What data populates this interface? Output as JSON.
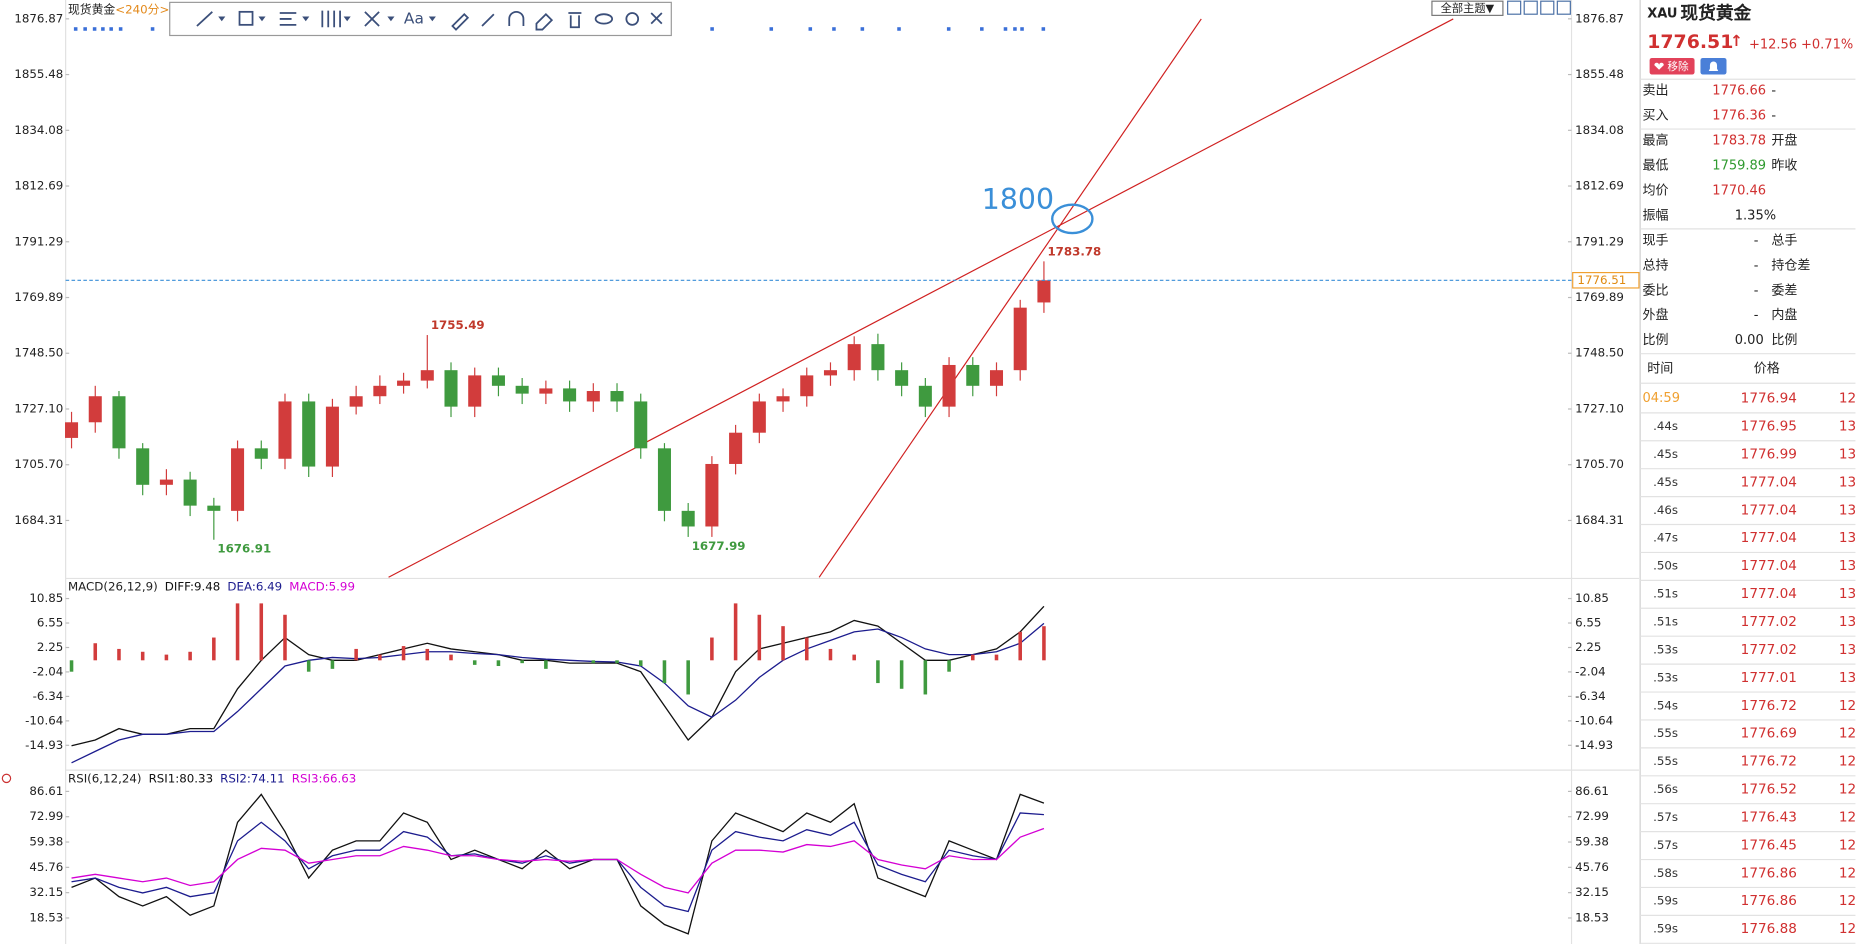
{
  "chart_data": [
    {
      "type": "candlestick",
      "title": "现货黄金",
      "period": "<240分>",
      "annotation": "1800",
      "up_color": "#d23c3c",
      "down_color": "#3f9a3f",
      "price_line_color": "#3a8fd8",
      "open": [
        1716,
        1722,
        1732,
        1712,
        1698,
        1700,
        1690,
        1688,
        1712,
        1708,
        1730,
        1705,
        1728,
        1732,
        1736,
        1738,
        1742,
        1728,
        1740,
        1736,
        1733,
        1735,
        1730,
        1734,
        1730,
        1712,
        1688,
        1682,
        1706,
        1718,
        1730,
        1732,
        1740,
        1742,
        1752,
        1742,
        1736,
        1728,
        1744,
        1736,
        1742,
        1768
      ],
      "high": [
        1726,
        1736,
        1734,
        1714,
        1704,
        1703,
        1693,
        1715,
        1715,
        1733,
        1733,
        1731,
        1736,
        1740,
        1741,
        1755.49,
        1745,
        1743,
        1743,
        1739,
        1738,
        1738,
        1737,
        1737,
        1733,
        1714,
        1691,
        1709,
        1721,
        1733,
        1735,
        1743,
        1745,
        1755,
        1756,
        1745,
        1739,
        1747,
        1747,
        1745,
        1769,
        1783.78
      ],
      "low": [
        1712,
        1718,
        1708,
        1694,
        1694,
        1686,
        1676.91,
        1684,
        1704,
        1704,
        1701,
        1701,
        1725,
        1729,
        1733,
        1735,
        1724,
        1724,
        1732,
        1729,
        1729,
        1726,
        1726,
        1726,
        1708,
        1684,
        1677.99,
        1678,
        1702,
        1714,
        1726,
        1728,
        1736,
        1738,
        1738,
        1732,
        1724,
        1724,
        1732,
        1732,
        1738,
        1764
      ],
      "close": [
        1722,
        1732,
        1712,
        1698,
        1700,
        1690,
        1688,
        1712,
        1708,
        1730,
        1705,
        1728,
        1732,
        1736,
        1738,
        1742,
        1728,
        1740,
        1736,
        1733,
        1735,
        1730,
        1734,
        1730,
        1712,
        1688,
        1682,
        1706,
        1718,
        1730,
        1732,
        1740,
        1742,
        1752,
        1742,
        1736,
        1728,
        1744,
        1736,
        1742,
        1766,
        1776.51
      ],
      "ylim": [
        1662.5,
        1884.1
      ],
      "yticks": [
        1876.87,
        1855.48,
        1834.08,
        1812.69,
        1791.29,
        1769.89,
        {
          "value": 1748.5,
          "label": "1748.50"
        },
        {
          "value": 1727.1,
          "label": "1727.10"
        },
        {
          "value": 1705.7,
          "label": "1705.70"
        },
        1684.31
      ]
    },
    {
      "type": "macd",
      "title": "MACD(26,12,9)",
      "ylim": [
        -19.08,
        14.17
      ],
      "yticks": [
        10.85,
        6.55,
        2.25,
        -2.04,
        -6.34,
        -10.64,
        -14.93
      ],
      "up_color": "#d23c3c",
      "down_color": "#3f9a3f",
      "series": [
        {
          "name": "DIFF:9.48",
          "color": "#111111",
          "values": [
            -15,
            -14,
            -12,
            -13,
            -13,
            -12,
            -12,
            -5,
            0,
            4,
            1,
            0,
            0,
            1,
            2,
            3,
            2,
            1.5,
            1,
            0,
            0,
            -0.5,
            -0.5,
            -0.5,
            -2,
            -8,
            -14,
            -10,
            -2,
            2,
            3,
            4,
            5,
            7,
            6,
            3,
            0,
            0,
            1,
            2,
            5,
            9.48
          ]
        },
        {
          "name": "DEA:6.49",
          "color": "#1c1c8e",
          "values": [
            -18,
            -16,
            -14,
            -13,
            -13,
            -12.5,
            -12.5,
            -9,
            -5,
            -1,
            0,
            0.5,
            0.3,
            0.5,
            1,
            1.5,
            1.5,
            1.2,
            1,
            0.5,
            0.2,
            0,
            -0.2,
            -0.3,
            -1,
            -4,
            -8,
            -10,
            -7,
            -3,
            0,
            2,
            3.5,
            5,
            5.5,
            4,
            2,
            1,
            1,
            1.5,
            3,
            6.49
          ]
        },
        {
          "name": "MACD:5.99",
          "color": "#d400d4",
          "style": "bar",
          "values": [
            -2,
            3,
            2,
            1.5,
            1,
            1.5,
            4,
            10,
            10,
            8,
            -2,
            -1.5,
            2,
            1,
            2.5,
            2,
            1,
            -0.8,
            -1,
            -0.5,
            -1.5,
            0,
            -0.5,
            -0.5,
            -1,
            -4,
            -6,
            4,
            10,
            8,
            6,
            4,
            2,
            1,
            -4,
            -5,
            -6,
            -2,
            1,
            1,
            5,
            5.99
          ]
        }
      ]
    },
    {
      "type": "rsi",
      "title": "RSI(6,12,24)",
      "ylim": [
        4.53,
        97.43
      ],
      "yticks": [
        86.61,
        72.99,
        59.38,
        45.76,
        32.15,
        18.53
      ],
      "series": [
        {
          "name": "RSI1:80.33",
          "color": "#111111",
          "values": [
            35,
            40,
            30,
            25,
            30,
            20,
            25,
            70,
            85,
            65,
            40,
            55,
            60,
            60,
            75,
            70,
            50,
            55,
            50,
            45,
            55,
            45,
            50,
            50,
            25,
            15,
            10,
            60,
            75,
            70,
            65,
            75,
            70,
            80,
            40,
            35,
            30,
            60,
            55,
            50,
            85,
            80.33
          ]
        },
        {
          "name": "RSI2:74.11",
          "color": "#1c1c8e",
          "values": [
            38,
            40,
            35,
            32,
            35,
            30,
            32,
            60,
            70,
            60,
            45,
            52,
            55,
            55,
            65,
            62,
            52,
            53,
            50,
            48,
            52,
            48,
            50,
            50,
            35,
            25,
            22,
            55,
            65,
            62,
            60,
            66,
            63,
            70,
            47,
            42,
            38,
            55,
            52,
            50,
            75,
            74.11
          ]
        },
        {
          "name": "RSI3:66.63",
          "color": "#d400d4",
          "values": [
            40,
            42,
            40,
            38,
            40,
            36,
            38,
            50,
            56,
            55,
            48,
            50,
            52,
            52,
            57,
            55,
            52,
            52,
            50,
            49,
            50,
            49,
            50,
            50,
            42,
            35,
            32,
            48,
            55,
            55,
            54,
            58,
            57,
            60,
            50,
            47,
            45,
            52,
            50,
            50,
            62,
            66.63
          ]
        }
      ]
    }
  ],
  "toolbar": {
    "text_tool": "Aa",
    "theme_menu": "全部主题▼"
  },
  "quote": {
    "symbol": "XAU",
    "name": "现货黄金",
    "price": "1776.51",
    "arrow": "↑",
    "change": "+12.56",
    "change_pct": "+0.71%",
    "remove_button": "移除",
    "rows": [
      {
        "color": "#d03030",
        "cells": [
          "卖出",
          "1776.66",
          "-"
        ]
      },
      {
        "color": "#d03030",
        "cells": [
          "买入",
          "1776.36",
          "-"
        ]
      },
      {
        "color": "#d03030",
        "cells": [
          "最高",
          "1783.78",
          "开盘"
        ]
      },
      {
        "color": "#2f9a2f",
        "cells": [
          "最低",
          "1759.89",
          "昨收"
        ]
      },
      {
        "color": "#d03030",
        "cells": [
          "均价",
          "1770.46"
        ]
      },
      {
        "color": "#222222",
        "cells": [
          "振幅",
          "1.35%"
        ]
      },
      {
        "color": "#222222",
        "cells": [
          "现手",
          "-",
          "总手"
        ]
      },
      {
        "color": "#222222",
        "cells": [
          "总持",
          "-",
          "持仓差"
        ]
      },
      {
        "color": "#222222",
        "cells": [
          "委比",
          "-",
          "委差"
        ]
      },
      {
        "color": "#222222",
        "cells": [
          "外盘",
          "-",
          "内盘"
        ]
      },
      {
        "color": "#222222",
        "cells": [
          "比例",
          "0.00",
          "比例"
        ]
      }
    ],
    "trade_header": [
      "时间",
      "价格"
    ],
    "trades": {
      "times": [
        "04:59",
        ".44s",
        ".45s",
        ".45s",
        ".46s",
        ".47s",
        ".50s",
        ".51s",
        ".51s",
        ".53s",
        ".53s",
        ".54s",
        ".55s",
        ".55s",
        ".56s",
        ".57s",
        ".57s",
        ".58s",
        ".59s",
        ".59s"
      ],
      "prices": [
        "1776.94",
        "1776.95",
        "1776.99",
        "1777.04",
        "1777.04",
        "1777.04",
        "1777.04",
        "1777.04",
        "1777.02",
        "1777.02",
        "1777.01",
        "1776.72",
        "1776.69",
        "1776.72",
        "1776.52",
        "1776.43",
        "1776.45",
        "1776.86",
        "1776.86",
        "1776.88"
      ],
      "volumes": [
        "12",
        "13",
        "13",
        "13",
        "13",
        "13",
        "13",
        "13",
        "13",
        "13",
        "13",
        "12",
        "12",
        "12",
        "12",
        "12",
        "12",
        "12",
        "12",
        "12"
      ]
    }
  }
}
